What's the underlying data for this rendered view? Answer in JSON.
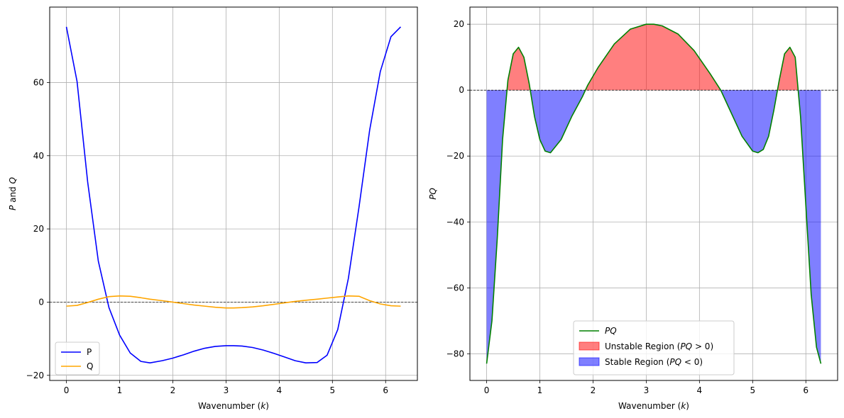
{
  "chart_data": [
    {
      "type": "line",
      "xlabel_prefix": "Wavenumber (",
      "xlabel_var": "k",
      "xlabel_suffix": ")",
      "ylabel_a": "P",
      "ylabel_mid": " and ",
      "ylabel_b": "Q",
      "xlim": [
        -0.314,
        6.597
      ],
      "ylim": [
        -21.4,
        80.6
      ],
      "xticks": [
        0,
        1,
        2,
        3,
        4,
        5,
        6
      ],
      "yticks": [
        -20,
        0,
        20,
        40,
        60
      ],
      "tick_labels_x": [
        "0",
        "1",
        "2",
        "3",
        "4",
        "5",
        "6"
      ],
      "tick_labels_y": [
        "−20",
        "0",
        "20",
        "40",
        "60"
      ],
      "grid": true,
      "zero_line": true,
      "legend_position": "lower-left",
      "x": [
        0,
        0.2,
        0.4,
        0.6,
        0.8,
        1.0,
        1.2,
        1.4,
        1.571,
        1.8,
        2.0,
        2.2,
        2.4,
        2.6,
        2.8,
        3.0,
        3.142,
        3.3,
        3.5,
        3.7,
        3.9,
        4.1,
        4.3,
        4.5,
        4.712,
        4.9,
        5.1,
        5.3,
        5.5,
        5.7,
        5.9,
        6.1,
        6.283
      ],
      "series": [
        {
          "name": "P",
          "color": "#0000ff",
          "values": [
            75.2,
            60.3,
            32.8,
            11.2,
            -1.5,
            -9.0,
            -13.9,
            -16.2,
            -16.6,
            -16.0,
            -15.3,
            -14.4,
            -13.4,
            -12.6,
            -12.1,
            -11.9,
            -11.9,
            -12.0,
            -12.4,
            -13.1,
            -14.0,
            -15.0,
            -16.0,
            -16.6,
            -16.5,
            -14.5,
            -7.5,
            6.5,
            26.0,
            47.0,
            63.0,
            72.5,
            75.2
          ]
        },
        {
          "name": "Q",
          "color": "#ffa500",
          "values": [
            -1.1,
            -0.9,
            -0.1,
            0.8,
            1.5,
            1.7,
            1.6,
            1.2,
            0.8,
            0.4,
            0.0,
            -0.4,
            -0.8,
            -1.1,
            -1.4,
            -1.6,
            -1.6,
            -1.5,
            -1.3,
            -1.0,
            -0.6,
            -0.2,
            0.2,
            0.5,
            0.8,
            1.1,
            1.4,
            1.7,
            1.6,
            0.4,
            -0.5,
            -1.0,
            -1.1
          ]
        }
      ]
    },
    {
      "type": "area",
      "xlabel_prefix": "Wavenumber (",
      "xlabel_var": "k",
      "xlabel_suffix": ")",
      "ylabel_var": "PQ",
      "xlim": [
        -0.314,
        6.597
      ],
      "ylim": [
        -88.1,
        25.2
      ],
      "xticks": [
        0,
        1,
        2,
        3,
        4,
        5,
        6
      ],
      "yticks": [
        -80,
        -60,
        -40,
        -20,
        0,
        20
      ],
      "tick_labels_x": [
        "0",
        "1",
        "2",
        "3",
        "4",
        "5",
        "6"
      ],
      "tick_labels_y": [
        "−80",
        "−60",
        "−40",
        "−20",
        "0",
        "20"
      ],
      "grid": true,
      "zero_line": true,
      "legend_position": "lower-center",
      "x": [
        0,
        0.1,
        0.2,
        0.3,
        0.4,
        0.5,
        0.6,
        0.7,
        0.8,
        0.9,
        1.0,
        1.1,
        1.2,
        1.4,
        1.6,
        1.8,
        1.9,
        2.1,
        2.4,
        2.7,
        3.0,
        3.142,
        3.3,
        3.6,
        3.9,
        4.2,
        4.4,
        4.6,
        4.8,
        5.0,
        5.1,
        5.2,
        5.3,
        5.4,
        5.5,
        5.6,
        5.7,
        5.8,
        5.9,
        6.0,
        6.1,
        6.2,
        6.283
      ],
      "series": [
        {
          "name_prefix": "",
          "name_var": "PQ",
          "name_suffix": "",
          "color": "#008000",
          "values": [
            -83,
            -70,
            -45,
            -15,
            3,
            11,
            13,
            10,
            2,
            -8,
            -15,
            -18.5,
            -19,
            -15,
            -8,
            -2,
            1.5,
            7,
            14,
            18.5,
            20,
            20,
            19.5,
            17,
            12,
            5,
            0,
            -7,
            -14,
            -18.5,
            -19,
            -18,
            -14,
            -6,
            3,
            11,
            13,
            10,
            -8,
            -35,
            -62,
            -78,
            -83
          ]
        },
        {
          "name_prefix": "Unstable Region (",
          "name_var": "PQ",
          "name_suffix": " > 0)",
          "color": "#ff0000",
          "opacity": 0.5
        },
        {
          "name_prefix": "Stable Region (",
          "name_var": "PQ",
          "name_suffix": " < 0)",
          "color": "#0000ff",
          "opacity": 0.5
        }
      ]
    }
  ]
}
